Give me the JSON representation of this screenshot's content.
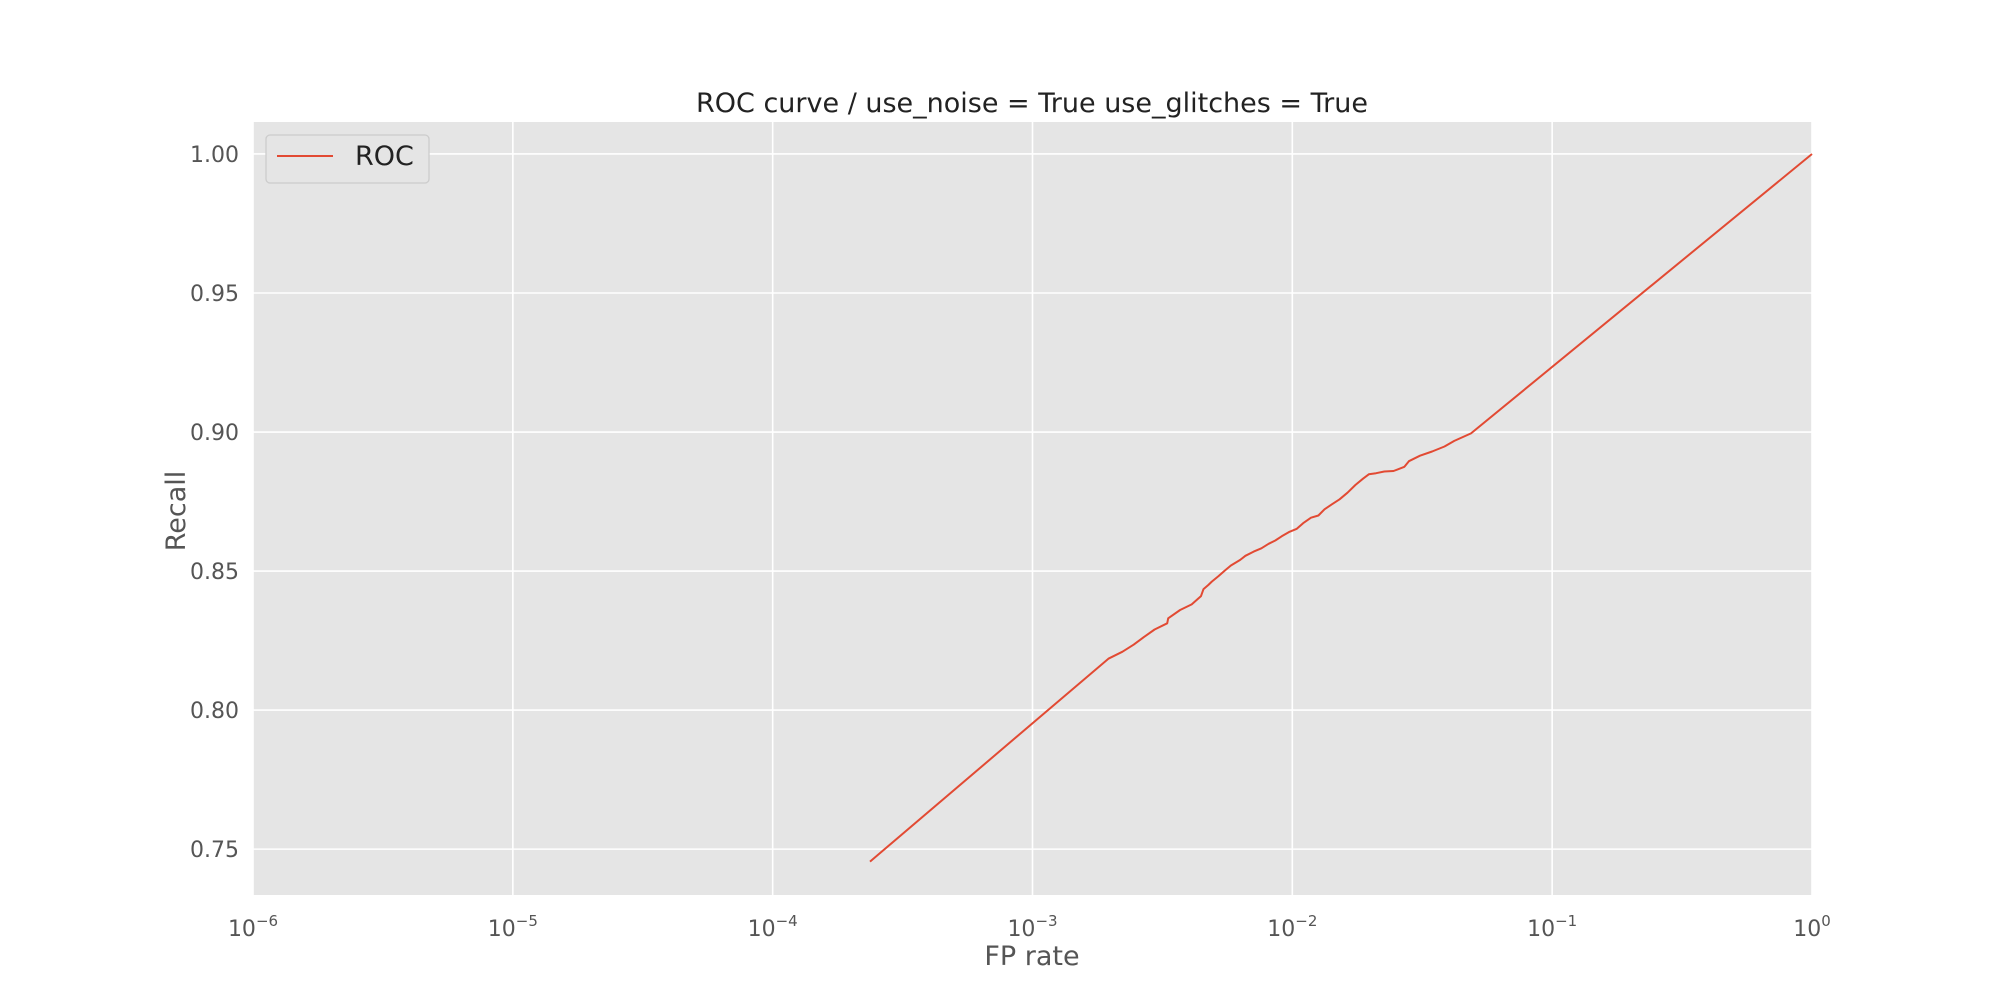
{
  "chart_data": {
    "type": "line",
    "title": "ROC curve / use_noise = True  use_glitches = True",
    "xlabel": "FP rate",
    "ylabel": "Recall",
    "xscale": "log",
    "xlim": [
      1e-06,
      1
    ],
    "ylim": [
      0.7335,
      1.0115
    ],
    "grid": true,
    "legend_position": "top-left",
    "x_ticks": [
      {
        "value": 1e-06,
        "base": "10",
        "exp": "−6"
      },
      {
        "value": 1e-05,
        "base": "10",
        "exp": "−5"
      },
      {
        "value": 0.0001,
        "base": "10",
        "exp": "−4"
      },
      {
        "value": 0.001,
        "base": "10",
        "exp": "−3"
      },
      {
        "value": 0.01,
        "base": "10",
        "exp": "−2"
      },
      {
        "value": 0.1,
        "base": "10",
        "exp": "−1"
      },
      {
        "value": 1,
        "base": "10",
        "exp": "0"
      }
    ],
    "y_ticks": [
      {
        "value": 0.75,
        "label": "0.75"
      },
      {
        "value": 0.8,
        "label": "0.80"
      },
      {
        "value": 0.85,
        "label": "0.85"
      },
      {
        "value": 0.9,
        "label": "0.90"
      },
      {
        "value": 0.95,
        "label": "0.95"
      },
      {
        "value": 1.0,
        "label": "1.00"
      }
    ],
    "series": [
      {
        "name": "ROC",
        "color": "#E24A33",
        "x": [
          0.000237,
          0.00196,
          0.00222,
          0.00245,
          0.00268,
          0.00295,
          0.0033,
          0.00333,
          0.0037,
          0.0041,
          0.00445,
          0.00455,
          0.00475,
          0.0049,
          0.0052,
          0.0055,
          0.0058,
          0.0063,
          0.0066,
          0.0071,
          0.0076,
          0.0081,
          0.0086,
          0.0091,
          0.0097,
          0.0104,
          0.011,
          0.0118,
          0.0126,
          0.0133,
          0.0142,
          0.0152,
          0.0163,
          0.0175,
          0.0187,
          0.0197,
          0.021,
          0.0226,
          0.0245,
          0.027,
          0.0281,
          0.031,
          0.0345,
          0.0385,
          0.042,
          0.0487,
          1.0
        ],
        "y": [
          0.7455,
          0.8185,
          0.821,
          0.8235,
          0.8262,
          0.829,
          0.8312,
          0.833,
          0.836,
          0.838,
          0.841,
          0.8435,
          0.845,
          0.8462,
          0.8482,
          0.8502,
          0.852,
          0.854,
          0.8555,
          0.857,
          0.8582,
          0.8598,
          0.861,
          0.8625,
          0.864,
          0.8652,
          0.8672,
          0.8692,
          0.87,
          0.8722,
          0.874,
          0.8758,
          0.8782,
          0.881,
          0.8832,
          0.8848,
          0.8852,
          0.8858,
          0.886,
          0.8875,
          0.8895,
          0.8915,
          0.893,
          0.8948,
          0.8968,
          0.8995,
          1.0
        ]
      }
    ]
  }
}
